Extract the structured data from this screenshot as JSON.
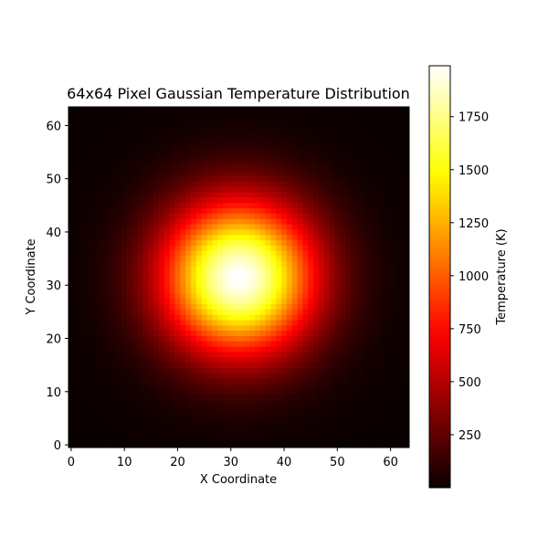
{
  "chart_data": {
    "type": "heatmap",
    "title": "64x64 Pixel Gaussian Temperature Distribution",
    "xlabel": "X Coordinate",
    "ylabel": "Y Coordinate",
    "grid_size": [
      64,
      64
    ],
    "xlim": [
      -0.5,
      63.5
    ],
    "ylim": [
      -0.5,
      63.5
    ],
    "x_ticks": [
      0,
      10,
      20,
      30,
      40,
      50,
      60
    ],
    "y_ticks": [
      0,
      10,
      20,
      30,
      40,
      50,
      60
    ],
    "colormap": "hot",
    "distribution": {
      "kind": "gaussian",
      "center_x": 31.5,
      "center_y": 31.5,
      "sigma": 10,
      "peak_value": 1990
    },
    "colorbar": {
      "label": "Temperature (K)",
      "vmin": 0,
      "vmax": 1990,
      "ticks": [
        250,
        500,
        750,
        1000,
        1250,
        1500,
        1750
      ]
    }
  }
}
